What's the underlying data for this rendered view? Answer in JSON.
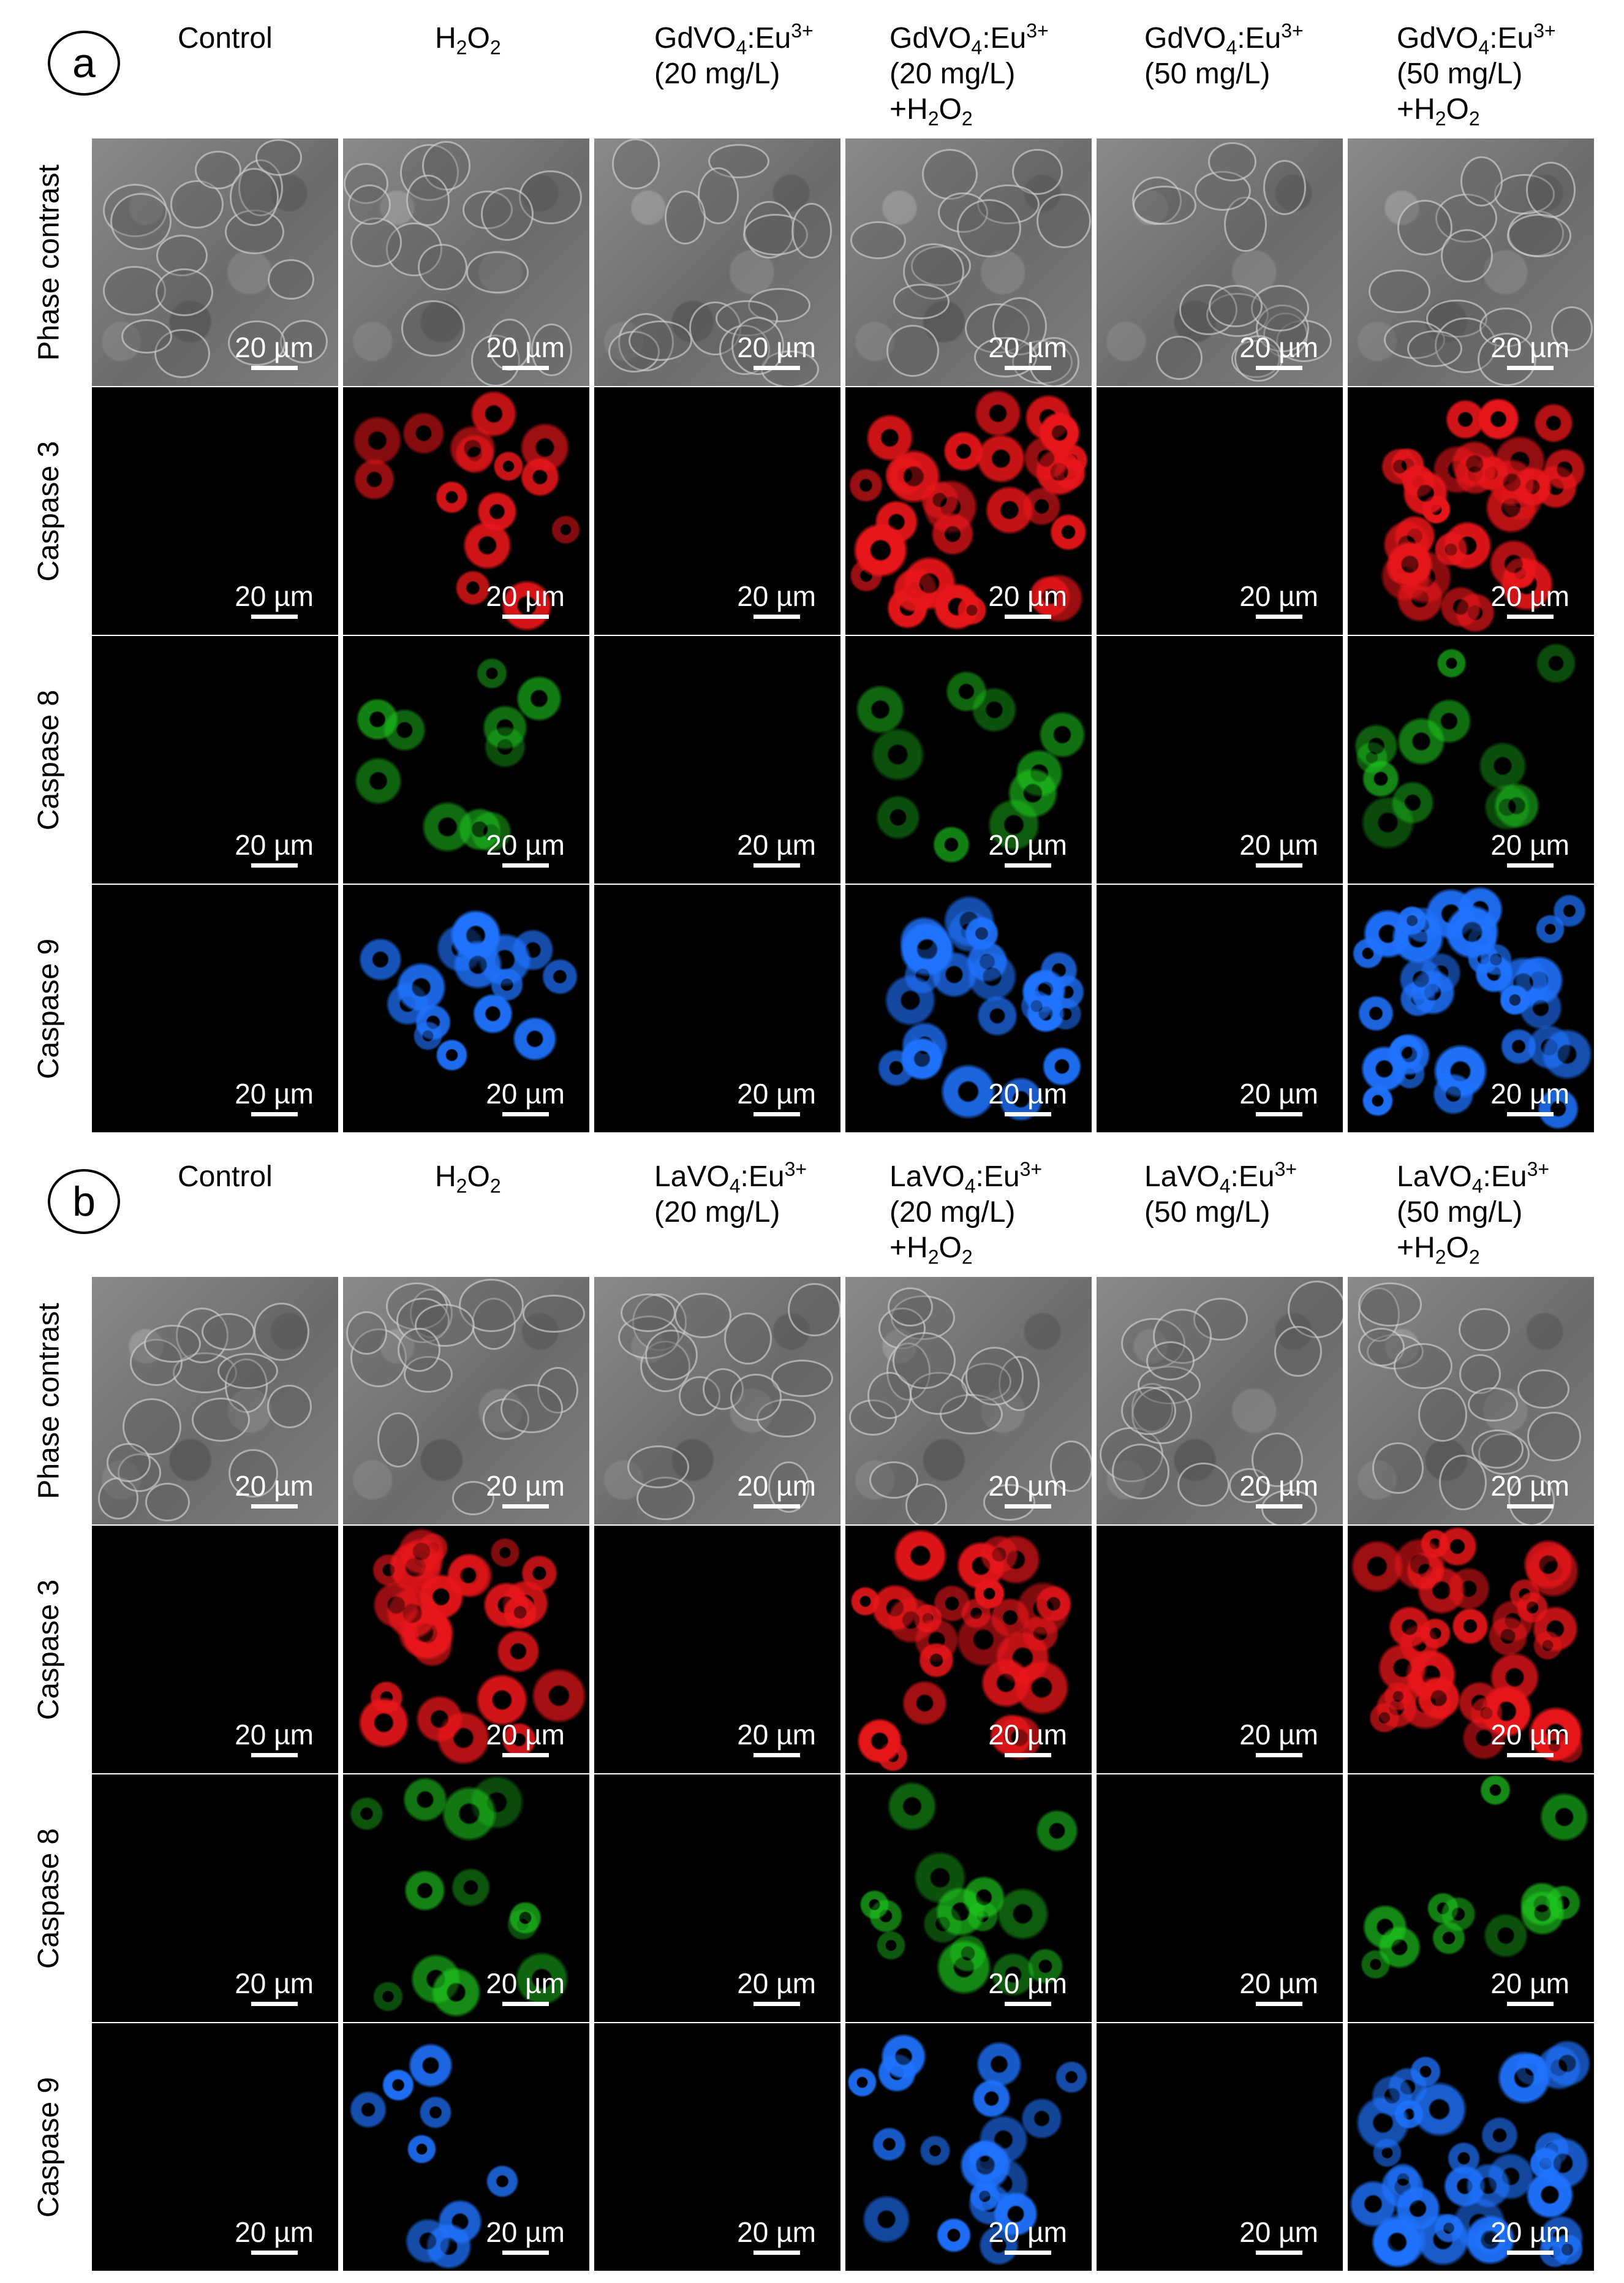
{
  "scale_bar_label": "20 µm",
  "row_labels": [
    "Phase contrast",
    "Caspase 3",
    "Caspase 8",
    "Caspase 9"
  ],
  "colors": {
    "caspase3": "#e8161a",
    "caspase8": "#1ec81e",
    "caspase9": "#1f73ff",
    "phase": "#7a7a7a",
    "background": "#000000"
  },
  "panels": [
    {
      "label": "a",
      "columns": [
        {
          "lines": [
            "Control"
          ],
          "signal": {
            "caspase3": 0,
            "caspase8": 0,
            "caspase9": 0
          }
        },
        {
          "lines": [
            "H2O2"
          ],
          "signal": {
            "caspase3": 0.45,
            "caspase8": 0.3,
            "caspase9": 0.45
          }
        },
        {
          "lines": [
            "GdVO4:Eu3+",
            "(20 mg/L)"
          ],
          "signal": {
            "caspase3": 0,
            "caspase8": 0,
            "caspase9": 0
          }
        },
        {
          "lines": [
            "GdVO4:Eu3+",
            "(20 mg/L)",
            "+H2O2"
          ],
          "signal": {
            "caspase3": 0.85,
            "caspase8": 0.3,
            "caspase9": 0.7
          }
        },
        {
          "lines": [
            "GdVO4:Eu3+",
            "(50 mg/L)"
          ],
          "signal": {
            "caspase3": 0,
            "caspase8": 0,
            "caspase9": 0
          }
        },
        {
          "lines": [
            "GdVO4:Eu3+",
            "(50 mg/L)",
            "+H2O2"
          ],
          "signal": {
            "caspase3": 1.0,
            "caspase8": 0.35,
            "caspase9": 1.0
          }
        }
      ]
    },
    {
      "label": "b",
      "columns": [
        {
          "lines": [
            "Control"
          ],
          "signal": {
            "caspase3": 0,
            "caspase8": 0,
            "caspase9": 0
          }
        },
        {
          "lines": [
            "H2O2"
          ],
          "signal": {
            "caspase3": 0.8,
            "caspase8": 0.35,
            "caspase9": 0.25
          }
        },
        {
          "lines": [
            "LaVO4:Eu3+",
            "(20 mg/L)"
          ],
          "signal": {
            "caspase3": 0,
            "caspase8": 0,
            "caspase9": 0
          }
        },
        {
          "lines": [
            "LaVO4:Eu3+",
            "(20 mg/L)",
            "+H2O2"
          ],
          "signal": {
            "caspase3": 0.75,
            "caspase8": 0.45,
            "caspase9": 0.6
          }
        },
        {
          "lines": [
            "LaVO4:Eu3+",
            "(50 mg/L)"
          ],
          "signal": {
            "caspase3": 0,
            "caspase8": 0,
            "caspase9": 0
          }
        },
        {
          "lines": [
            "LaVO4:Eu3+",
            "(50 mg/L)",
            "+H2O2"
          ],
          "signal": {
            "caspase3": 1.0,
            "caspase8": 0.35,
            "caspase9": 1.0
          }
        }
      ]
    }
  ]
}
